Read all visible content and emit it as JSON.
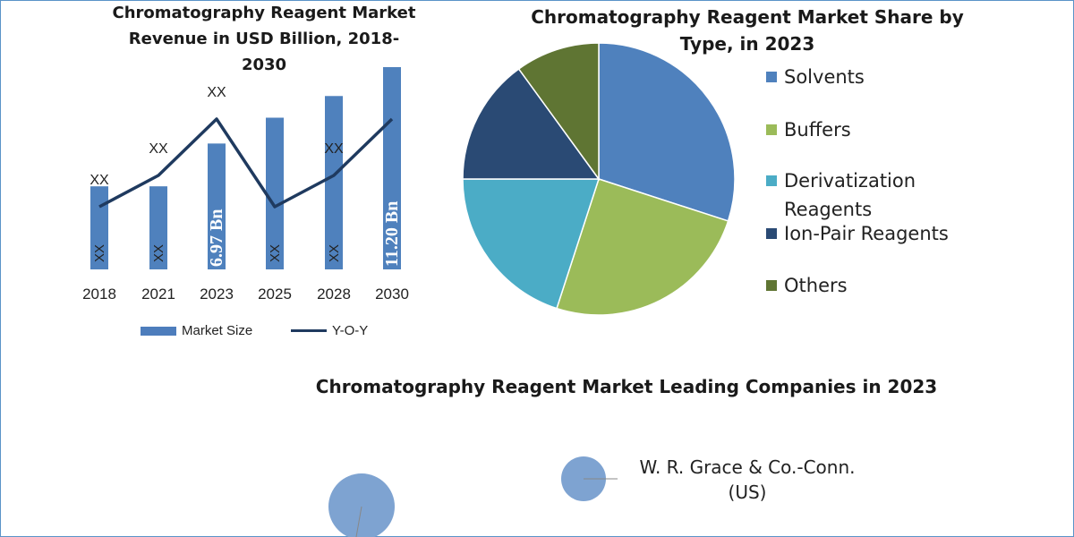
{
  "bar_chart": {
    "title": "Chromatography Reagent Market\nRevenue in USD Billion, 2018-\n2030",
    "legend": {
      "bar_label": "Market Size",
      "line_label": "Y-O-Y"
    }
  },
  "pie_chart": {
    "title": "Chromatography Reagent Market Share by\nType, in 2023"
  },
  "companies": {
    "title": "Chromatography Reagent Market Leading Companies in 2023",
    "items": [
      {
        "label": "W. R. Grace & Co.-Conn.\n(US)"
      }
    ]
  },
  "colors": {
    "bar": "#4f81bd",
    "line": "#1f3a5f",
    "solvents": "#4f81bd",
    "buffers": "#9bbb59",
    "derivatization": "#4bacc6",
    "ion_pair": "#2a4a74",
    "others": "#5f7533",
    "bubble": "#7ea3d1",
    "frame": "#5a93c8"
  },
  "chart_data": [
    {
      "type": "bar",
      "title": "Chromatography Reagent Market Revenue in USD Billion, 2018-2030",
      "categories": [
        "2018",
        "2021",
        "2023",
        "2025",
        "2028",
        "2030"
      ],
      "series": [
        {
          "name": "Market Size",
          "values": [
            4.6,
            4.6,
            6.97,
            8.4,
            9.6,
            11.2
          ],
          "data_labels": [
            "XX",
            "XX",
            "6.97 Bn",
            "XX",
            "XX",
            "11.20 Bn"
          ]
        },
        {
          "name": "Y-O-Y",
          "type": "line",
          "values": [
            1.0,
            1.5,
            2.4,
            1.0,
            1.5,
            2.4
          ],
          "data_labels": [
            "XX",
            "XX",
            "XX",
            "",
            "XX",
            ""
          ]
        }
      ],
      "ylim": [
        0,
        11.2
      ],
      "legend": "bottom",
      "grid": false
    },
    {
      "type": "pie",
      "title": "Chromatography Reagent Market Share by Type, in 2023",
      "labels": [
        "Solvents",
        "Buffers",
        "Derivatization Reagents",
        "Ion-Pair Reagents",
        "Others"
      ],
      "values": [
        30,
        25,
        20,
        15,
        10
      ],
      "legend": "right"
    }
  ]
}
